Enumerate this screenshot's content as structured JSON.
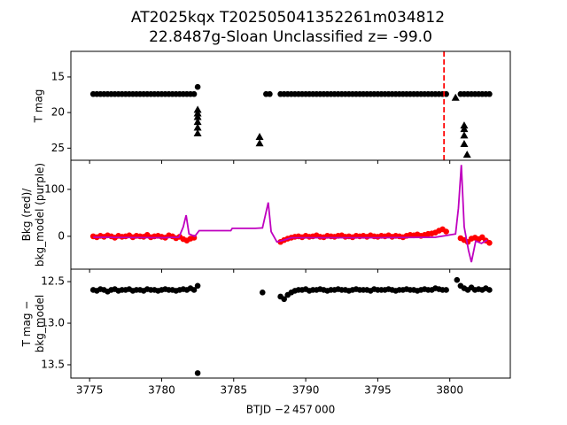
{
  "chart_data": [
    {
      "type": "scatter",
      "title": [
        "AT2025kqx  T202505041352261m034812",
        "22.8487g-Sloan Unclassified z= -99.0"
      ],
      "ylabel": [
        "T mag"
      ],
      "xlim": [
        3773.7,
        3804.2
      ],
      "ylim": [
        11.4,
        26.7
      ],
      "y_inverted": true,
      "yticks": [
        15,
        20,
        25
      ],
      "vlines": [
        {
          "x": 3799.6,
          "color": "#ff0000",
          "linestyle": "dashed"
        }
      ],
      "series": [
        {
          "marker": "o",
          "color": "#000000",
          "x": [
            3775.25,
            3775.5,
            3775.75,
            3776,
            3776.25,
            3776.5,
            3776.75,
            3777,
            3777.25,
            3777.5,
            3777.75,
            3778,
            3778.25,
            3778.5,
            3778.75,
            3779,
            3779.25,
            3779.5,
            3779.75,
            3780,
            3780.25,
            3780.5,
            3780.75,
            3781,
            3781.25,
            3781.5,
            3781.75,
            3782,
            3782.25,
            3782.5,
            3787.25,
            3787.5,
            3788.25,
            3788.5,
            3788.75,
            3789,
            3789.25,
            3789.5,
            3789.75,
            3790,
            3790.25,
            3790.5,
            3790.75,
            3791,
            3791.25,
            3791.5,
            3791.75,
            3792,
            3792.25,
            3792.5,
            3792.75,
            3793,
            3793.25,
            3793.5,
            3793.75,
            3794,
            3794.25,
            3794.5,
            3794.75,
            3795,
            3795.25,
            3795.5,
            3795.75,
            3796,
            3796.25,
            3796.5,
            3796.75,
            3797,
            3797.25,
            3797.5,
            3797.75,
            3798,
            3798.25,
            3798.5,
            3798.75,
            3799,
            3799.25,
            3799.5,
            3799.75,
            3800.75,
            3801,
            3801.25,
            3801.5,
            3801.75,
            3802,
            3802.25,
            3802.5,
            3802.75
          ],
          "values": [
            17.4,
            17.4,
            17.4,
            17.4,
            17.4,
            17.4,
            17.4,
            17.4,
            17.4,
            17.4,
            17.4,
            17.4,
            17.4,
            17.4,
            17.4,
            17.4,
            17.4,
            17.4,
            17.4,
            17.4,
            17.4,
            17.4,
            17.4,
            17.4,
            17.4,
            17.4,
            17.4,
            17.4,
            17.4,
            16.4,
            17.4,
            17.4,
            17.4,
            17.4,
            17.4,
            17.4,
            17.4,
            17.4,
            17.4,
            17.4,
            17.4,
            17.4,
            17.4,
            17.4,
            17.4,
            17.4,
            17.4,
            17.4,
            17.4,
            17.4,
            17.4,
            17.4,
            17.4,
            17.4,
            17.4,
            17.4,
            17.4,
            17.4,
            17.4,
            17.4,
            17.4,
            17.4,
            17.4,
            17.4,
            17.4,
            17.4,
            17.4,
            17.4,
            17.4,
            17.4,
            17.4,
            17.4,
            17.4,
            17.4,
            17.4,
            17.4,
            17.4,
            17.4,
            17.4,
            17.4,
            17.4,
            17.4,
            17.4,
            17.4,
            17.4,
            17.4,
            17.4,
            17.4
          ]
        },
        {
          "marker": "^",
          "color": "#000000",
          "x": [
            3782.5,
            3782.5,
            3782.5,
            3782.5,
            3782.5,
            3782.5,
            3786.8,
            3786.8,
            3800.4,
            3801,
            3801,
            3801,
            3801,
            3801.2
          ],
          "values": [
            19.6,
            20.1,
            20.6,
            21.3,
            22.1,
            22.9,
            23.4,
            24.3,
            17.9,
            21.8,
            22.3,
            23.2,
            24.4,
            25.9
          ]
        }
      ]
    },
    {
      "type": "scatter",
      "ylabel": [
        "Bkg (red)/",
        "bkg_model (purple)"
      ],
      "xlim": [
        3773.7,
        3804.2
      ],
      "ylim": [
        -70,
        162
      ],
      "yticks": [
        0,
        100
      ],
      "series": [
        {
          "marker": "o",
          "color": "#ff0000",
          "x": [
            3775.25,
            3775.5,
            3775.75,
            3776,
            3776.25,
            3776.5,
            3776.75,
            3777,
            3777.25,
            3777.5,
            3777.75,
            3778,
            3778.25,
            3778.5,
            3778.75,
            3779,
            3779.25,
            3779.5,
            3779.75,
            3780,
            3780.25,
            3780.5,
            3780.75,
            3781,
            3781.25,
            3781.5,
            3781.75,
            3782,
            3782.25,
            3788.25,
            3788.5,
            3788.75,
            3789,
            3789.25,
            3789.5,
            3789.75,
            3790,
            3790.25,
            3790.5,
            3790.75,
            3791,
            3791.25,
            3791.5,
            3791.75,
            3792,
            3792.25,
            3792.5,
            3792.75,
            3793,
            3793.25,
            3793.5,
            3793.75,
            3794,
            3794.25,
            3794.5,
            3794.75,
            3795,
            3795.25,
            3795.5,
            3795.75,
            3796,
            3796.25,
            3796.5,
            3796.75,
            3797,
            3797.25,
            3797.5,
            3797.75,
            3798,
            3798.25,
            3798.5,
            3798.75,
            3799,
            3799.25,
            3799.5,
            3799.75,
            3800.75,
            3801,
            3801.25,
            3801.5,
            3801.75,
            3802,
            3802.25,
            3802.5,
            3802.75
          ],
          "values": [
            0,
            -2,
            1,
            -1,
            2,
            0,
            -3,
            1,
            -1,
            0,
            2,
            -2,
            1,
            0,
            -1,
            3,
            -2,
            0,
            1,
            -1,
            -3,
            2,
            0,
            -4,
            -1,
            -6,
            -9,
            -5,
            -3,
            -12,
            -8,
            -5,
            -3,
            -1,
            0,
            -2,
            1,
            -1,
            0,
            2,
            -1,
            -2,
            1,
            0,
            -1,
            1,
            2,
            -1,
            0,
            -2,
            1,
            0,
            1,
            -1,
            2,
            0,
            -1,
            1,
            0,
            2,
            -1,
            1,
            0,
            -2,
            1,
            3,
            2,
            4,
            1,
            3,
            5,
            6,
            8,
            12,
            15,
            10,
            -4,
            -8,
            -12,
            -5,
            -3,
            -6,
            -2,
            -9,
            -14
          ]
        },
        {
          "marker": "line",
          "color": "#bf00bf",
          "x": [
            3775.25,
            3780,
            3781.2,
            3781.5,
            3781.7,
            3781.9,
            3782.3,
            3782.6,
            3784.8,
            3784.9,
            3786.5,
            3787,
            3787.2,
            3787.4,
            3787.6,
            3788,
            3788.5,
            3789,
            3795,
            3799,
            3799.8,
            3800.4,
            3800.6,
            3800.8,
            3801,
            3801.3,
            3801.5,
            3801.8,
            3802.2,
            3802.6
          ],
          "values": [
            -2,
            -3,
            -2,
            20,
            45,
            5,
            0,
            12,
            12,
            17,
            17,
            18,
            45,
            72,
            10,
            -12,
            -8,
            -3,
            -3,
            -2,
            2,
            5,
            60,
            152,
            20,
            -30,
            -55,
            -10,
            -15,
            -8
          ]
        }
      ]
    },
    {
      "type": "scatter",
      "ylabel": [
        "T mag −",
        "bkg_model"
      ],
      "xlabel": "BTJD −2 457 000",
      "xlim": [
        3773.7,
        3804.2
      ],
      "xticks": [
        3775,
        3780,
        3785,
        3790,
        3795,
        3800
      ],
      "ylim": [
        12.35,
        13.66
      ],
      "y_inverted": true,
      "yticks": [
        12.5,
        {
          "value": 13,
          "label": "13.0"
        },
        13.5
      ],
      "series": [
        {
          "marker": "o",
          "color": "#000000",
          "x": [
            3775.25,
            3775.5,
            3775.75,
            3776,
            3776.25,
            3776.5,
            3776.75,
            3777,
            3777.25,
            3777.5,
            3777.75,
            3778,
            3778.25,
            3778.5,
            3778.75,
            3779,
            3779.25,
            3779.5,
            3779.75,
            3780,
            3780.25,
            3780.5,
            3780.75,
            3781,
            3781.25,
            3781.5,
            3781.75,
            3782,
            3782.25,
            3782.5,
            3782.5,
            3787,
            3788.25,
            3788.5,
            3788.75,
            3789,
            3789.25,
            3789.5,
            3789.75,
            3790,
            3790.25,
            3790.5,
            3790.75,
            3791,
            3791.25,
            3791.5,
            3791.75,
            3792,
            3792.25,
            3792.5,
            3792.75,
            3793,
            3793.25,
            3793.5,
            3793.75,
            3794,
            3794.25,
            3794.5,
            3794.75,
            3795,
            3795.25,
            3795.5,
            3795.75,
            3796,
            3796.25,
            3796.5,
            3796.75,
            3797,
            3797.25,
            3797.5,
            3797.75,
            3798,
            3798.25,
            3798.5,
            3798.75,
            3799,
            3799.25,
            3799.5,
            3799.75,
            3800.5,
            3800.75,
            3801,
            3801.25,
            3801.5,
            3801.75,
            3802,
            3802.25,
            3802.5,
            3802.75
          ],
          "values": [
            12.6,
            12.61,
            12.59,
            12.6,
            12.62,
            12.6,
            12.59,
            12.61,
            12.6,
            12.6,
            12.59,
            12.61,
            12.6,
            12.6,
            12.61,
            12.59,
            12.6,
            12.6,
            12.61,
            12.6,
            12.59,
            12.6,
            12.6,
            12.61,
            12.6,
            12.59,
            12.6,
            12.58,
            12.6,
            12.55,
            13.6,
            12.63,
            12.68,
            12.71,
            12.66,
            12.63,
            12.61,
            12.6,
            12.6,
            12.59,
            12.61,
            12.6,
            12.6,
            12.59,
            12.6,
            12.61,
            12.6,
            12.6,
            12.59,
            12.6,
            12.6,
            12.61,
            12.6,
            12.59,
            12.6,
            12.6,
            12.6,
            12.61,
            12.59,
            12.6,
            12.6,
            12.6,
            12.59,
            12.6,
            12.61,
            12.6,
            12.6,
            12.59,
            12.6,
            12.6,
            12.61,
            12.6,
            12.59,
            12.6,
            12.6,
            12.58,
            12.59,
            12.6,
            12.6,
            12.48,
            12.55,
            12.58,
            12.6,
            12.57,
            12.6,
            12.59,
            12.6,
            12.58,
            12.6
          ]
        }
      ]
    }
  ]
}
